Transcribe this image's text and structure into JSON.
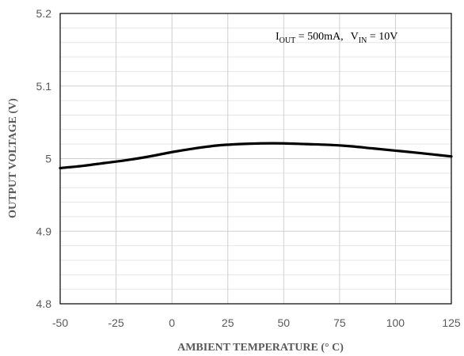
{
  "chart_data": {
    "type": "line",
    "title": "",
    "xlabel": "AMBIENT TEMPERATURE (° C)",
    "ylabel": "OUTPUT VOLTAGE (V)",
    "xlim": [
      -50,
      125
    ],
    "ylim": [
      4.8,
      5.2
    ],
    "x_major_ticks": [
      -50,
      -25,
      0,
      25,
      50,
      75,
      100,
      125
    ],
    "x_tick_labels": [
      "-50",
      "-25",
      "0",
      "25",
      "50",
      "75",
      "100",
      "125"
    ],
    "y_major_ticks": [
      4.8,
      4.9,
      5.0,
      5.1,
      5.2
    ],
    "y_tick_labels": [
      "4.8",
      "4.9",
      "5",
      "5.1",
      "5.2"
    ],
    "y_minor_step": 0.02,
    "grid": true,
    "legend": "none",
    "annotation": {
      "i_symbol": "I",
      "i_sub": "OUT",
      "i_value": " = 500mA,",
      "v_symbol": "V",
      "v_sub": "IN",
      "v_value": " = 10V"
    },
    "series": [
      {
        "color": "#000000",
        "x": [
          -50,
          -40,
          -30,
          -20,
          -10,
          0,
          10,
          20,
          30,
          40,
          50,
          60,
          70,
          80,
          90,
          100,
          110,
          125
        ],
        "y": [
          4.987,
          4.99,
          4.994,
          4.998,
          5.003,
          5.009,
          5.014,
          5.018,
          5.02,
          5.021,
          5.021,
          5.02,
          5.019,
          5.017,
          5.014,
          5.011,
          5.008,
          5.003
        ]
      }
    ]
  }
}
